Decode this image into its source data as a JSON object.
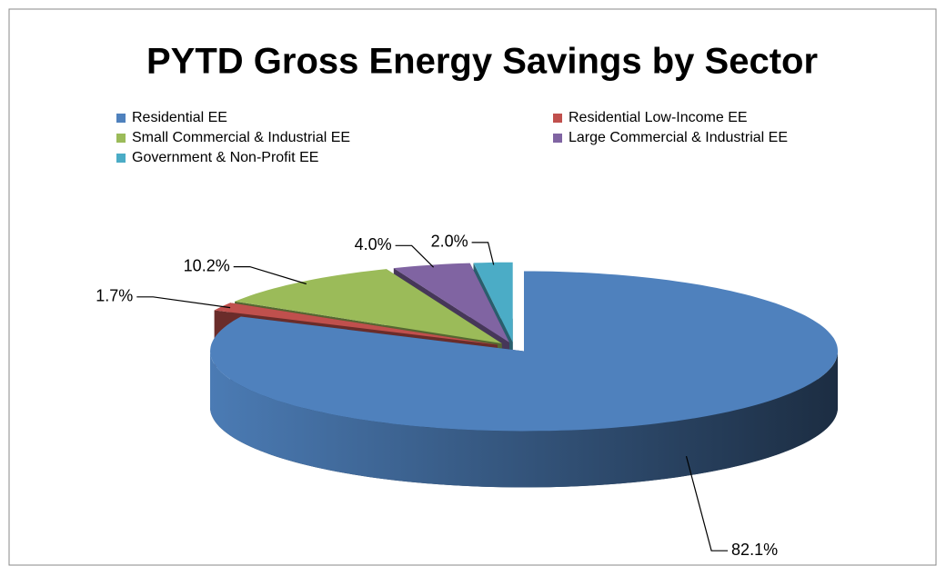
{
  "chart_data": {
    "type": "pie3d",
    "title": "PYTD Gross Energy Savings by Sector",
    "categories": [
      "Residential EE",
      "Residential Low-Income EE",
      "Small Commercial & Industrial EE",
      "Large Commercial & Industrial EE",
      "Government & Non-Profit EE"
    ],
    "values": [
      82.1,
      1.7,
      10.2,
      4.0,
      2.0
    ],
    "value_labels": [
      "82.1%",
      "1.7%",
      "10.2%",
      "4.0%",
      "2.0%"
    ],
    "colors": [
      "#4f81bd",
      "#c0504d",
      "#9bbb59",
      "#8064a2",
      "#4bacc6"
    ],
    "legend": "top"
  }
}
